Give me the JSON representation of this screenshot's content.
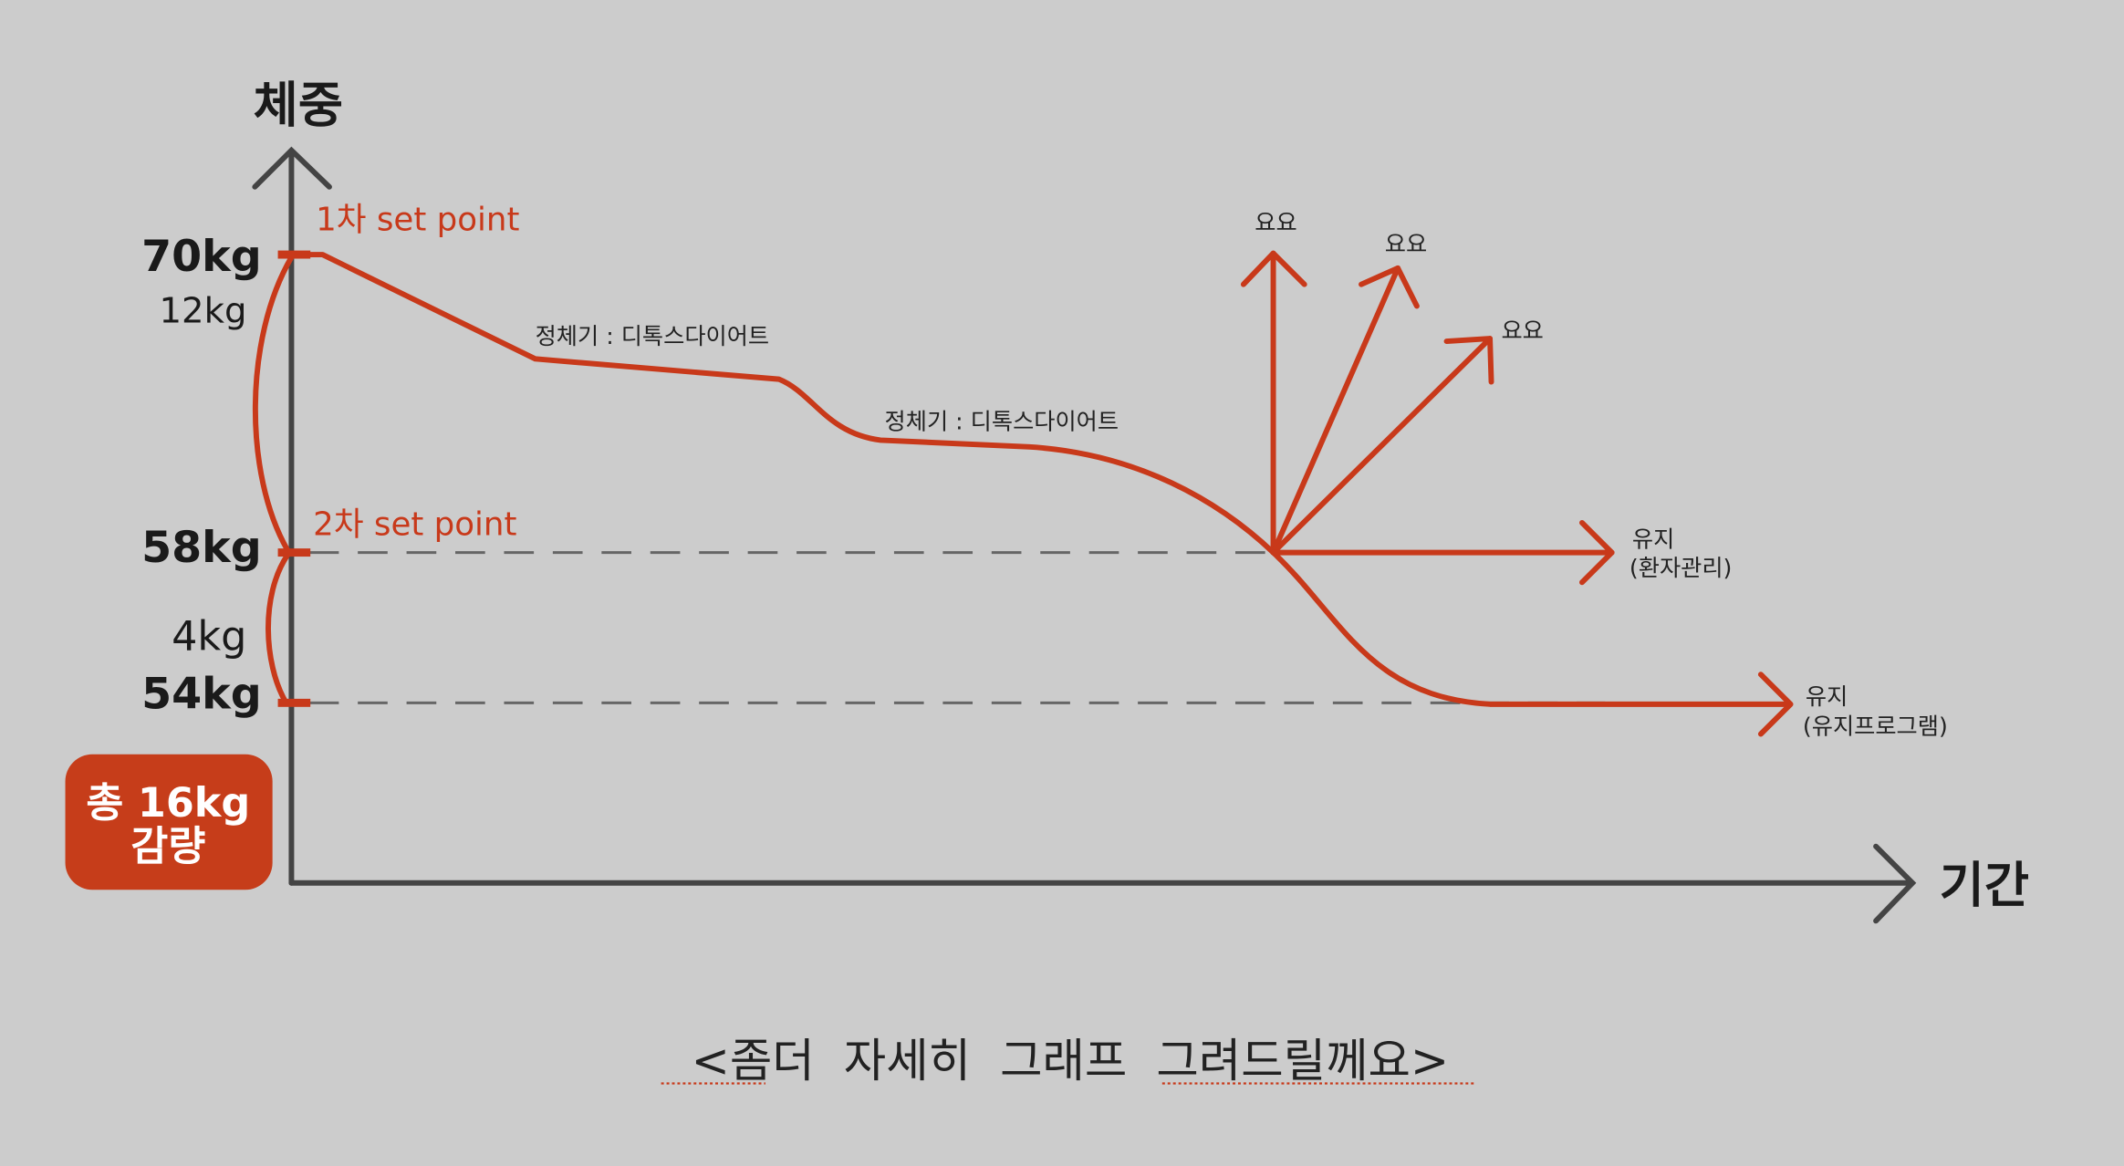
{
  "axes": {
    "y_label": "체중",
    "x_label": "기간"
  },
  "weights": {
    "w70": "70kg",
    "w58": "58kg",
    "w54": "54kg",
    "diff1": "12kg",
    "diff2": "4kg"
  },
  "set_points": {
    "first": "1차 set point",
    "second": "2차 set point"
  },
  "plateaus": {
    "first": "정체기 : 디톡스다이어트",
    "second": "정체기 : 디톡스다이어트"
  },
  "yoyo": {
    "a": "요요",
    "b": "요요",
    "c": "요요"
  },
  "maintain": {
    "a_line1": "유지",
    "a_line2": "(환자관리)",
    "b_line1": "유지",
    "b_line2": "(유지프로그램)"
  },
  "badge": {
    "line1": "총 16kg",
    "line2": "감량"
  },
  "caption": "<좀더  자세히  그래프  그려드릴께요>",
  "colors": {
    "accent": "#c8391a",
    "axis": "#444444",
    "background": "#cccccc"
  }
}
